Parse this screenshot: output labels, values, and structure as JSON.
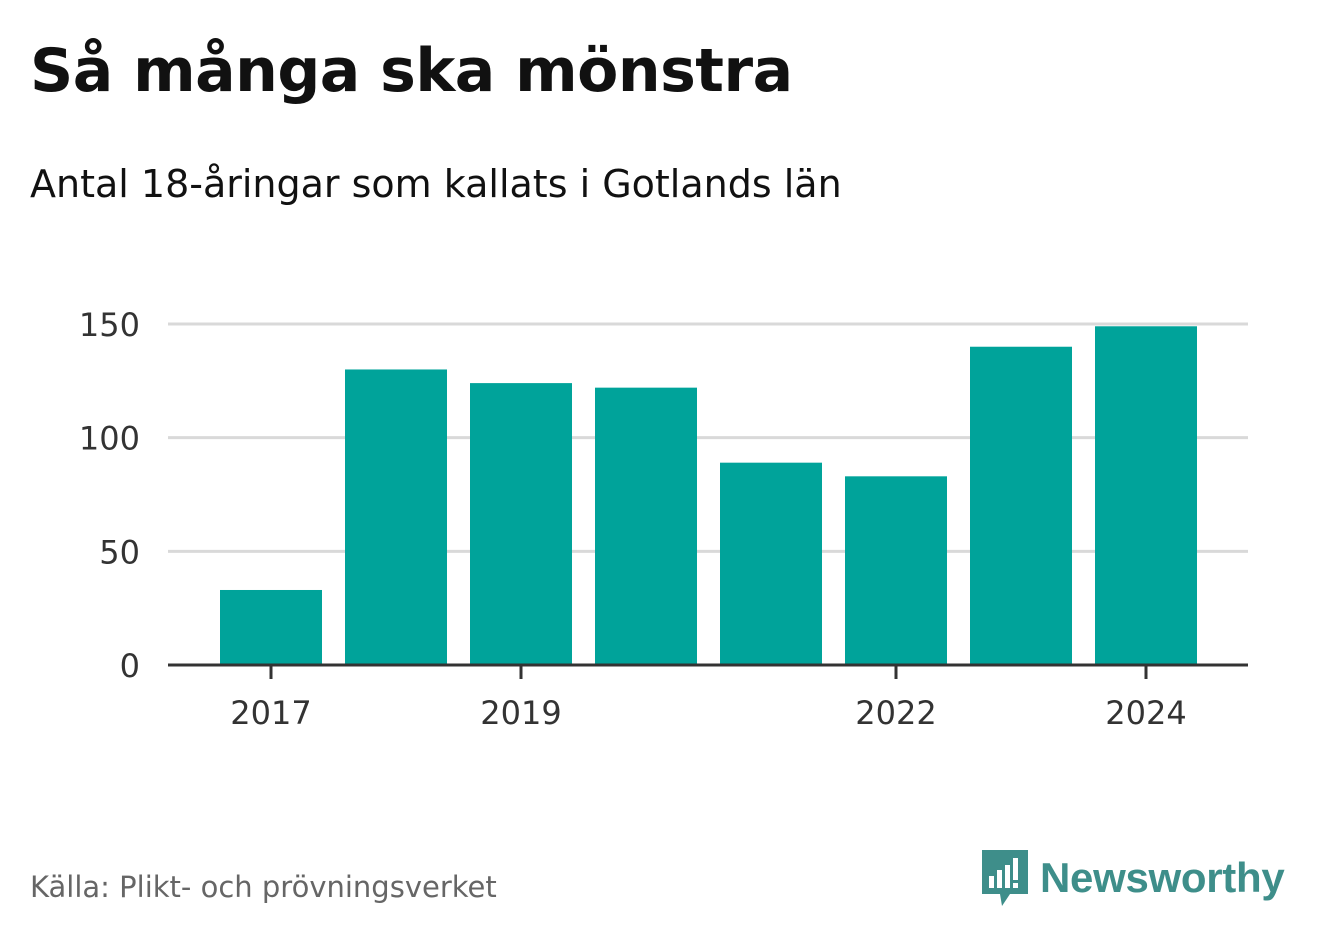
{
  "colors": {
    "bar": "#00a39a",
    "brand": "#3e8e8a",
    "grid": "#d9d9d9",
    "axis": "#333333"
  },
  "chart_data": {
    "type": "bar",
    "title": "Så många ska mönstra",
    "subtitle": "Antal 18-åringar som kallats i Gotlands län",
    "categories": [
      "2017",
      "2018",
      "2019",
      "2020",
      "2021",
      "2022",
      "2023",
      "2024"
    ],
    "values": [
      33,
      130,
      124,
      122,
      89,
      83,
      140,
      149
    ],
    "x_tick_labels": [
      "2017",
      "2019",
      "2022",
      "2024"
    ],
    "y_ticks": [
      "0",
      "50",
      "100",
      "150"
    ],
    "ylim": [
      0,
      150
    ],
    "xlabel": "",
    "ylabel": "",
    "grid": true
  },
  "footer": {
    "source": "Källa: Plikt- och prövningsverket",
    "brand": "Newsworthy",
    "brand_icon": "newsworthy-logo-icon"
  }
}
